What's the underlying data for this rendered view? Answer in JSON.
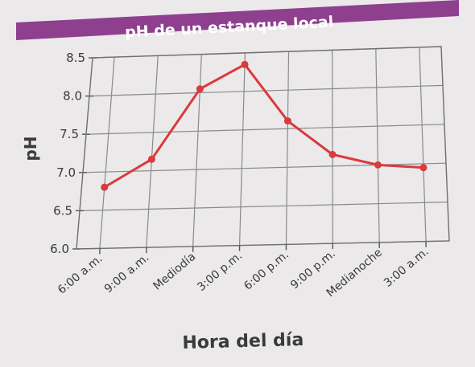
{
  "chart_data": {
    "type": "line",
    "title": "pH de un estanque local",
    "xlabel": "Hora del día",
    "ylabel": "pH",
    "categories": [
      "6:00 a.m.",
      "9:00 a.m.",
      "Mediodía",
      "3:00 p.m.",
      "6:00 p.m.",
      "9:00 p.m.",
      "Medianoche",
      "3:00 a.m."
    ],
    "yticks": [
      "6.0",
      "6.5",
      "7.0",
      "7.5",
      "8.0",
      "8.5"
    ],
    "ylim": [
      6.0,
      8.5
    ],
    "grid": true,
    "series": [
      {
        "values": [
          6.8,
          7.15,
          8.05,
          8.35,
          7.6,
          7.15,
          7.0,
          6.95
        ]
      }
    ],
    "colors": {
      "title_band": "#8e3f8e",
      "title_text": "#ffffff",
      "line": "#d93a3e",
      "grid": "#8a8a8a",
      "background": "#ebe9ea"
    }
  }
}
